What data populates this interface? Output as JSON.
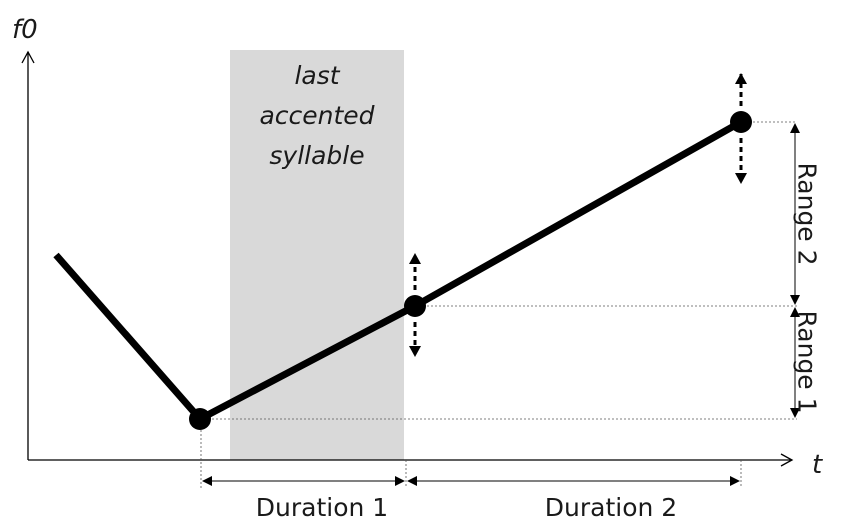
{
  "axes": {
    "y_label": "f0",
    "x_label": "t"
  },
  "shaded_region": {
    "label_lines": [
      "last",
      "accented",
      "syllable"
    ]
  },
  "measurements": {
    "duration_1": "Duration 1",
    "duration_2": "Duration 2",
    "range_1": "Range 1",
    "range_2": "Range 2"
  },
  "colors": {
    "contour": "#000000",
    "shade": "#d9d9d9",
    "guide": "#555555"
  }
}
